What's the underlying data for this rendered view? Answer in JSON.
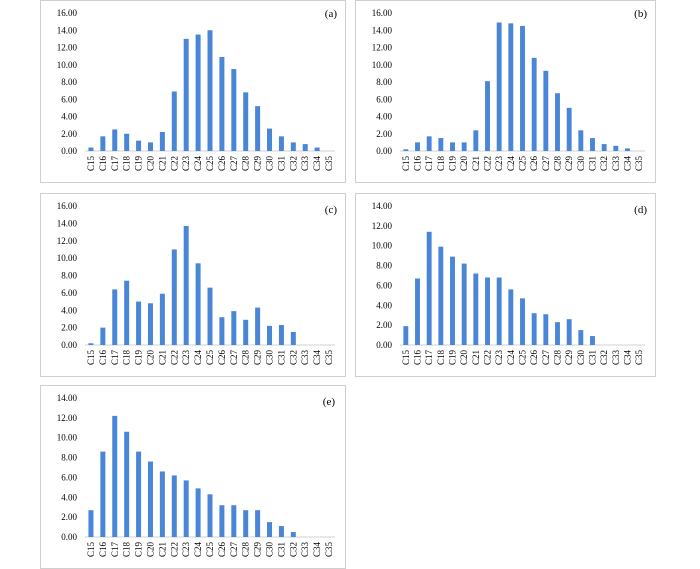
{
  "accent_color": "#4a86d8",
  "chart_data": [
    {
      "type": "bar",
      "title": "(a)",
      "categories": [
        "C15",
        "C16",
        "C17",
        "C18",
        "C19",
        "C20",
        "C21",
        "C22",
        "C23",
        "C24",
        "C25",
        "C26",
        "C27",
        "C28",
        "C29",
        "C30",
        "C31",
        "C32",
        "C33",
        "C34",
        "C35"
      ],
      "values": [
        0.4,
        1.7,
        2.5,
        2.0,
        1.2,
        1.0,
        2.2,
        6.9,
        13.0,
        13.5,
        14.0,
        10.9,
        9.5,
        6.8,
        5.2,
        2.6,
        1.7,
        1.0,
        0.8,
        0.4,
        0
      ],
      "yticks": [
        "0.00",
        "2.00",
        "4.00",
        "6.00",
        "8.00",
        "10.00",
        "12.00",
        "14.00",
        "16.00"
      ],
      "ylim": [
        0,
        16
      ],
      "grid": false,
      "legend": "none"
    },
    {
      "type": "bar",
      "title": "(b)",
      "categories": [
        "C15",
        "C16",
        "C17",
        "C18",
        "C19",
        "C20",
        "C21",
        "C22",
        "C23",
        "C24",
        "C25",
        "C26",
        "C27",
        "C28",
        "C29",
        "C30",
        "C31",
        "C32",
        "C33",
        "C34",
        "C35"
      ],
      "values": [
        0.2,
        1.0,
        1.7,
        1.5,
        1.0,
        1.0,
        2.4,
        8.1,
        14.9,
        14.8,
        14.5,
        10.8,
        9.3,
        6.7,
        5.0,
        2.4,
        1.5,
        0.8,
        0.6,
        0.3,
        0
      ],
      "yticks": [
        "0.00",
        "2.00",
        "4.00",
        "6.00",
        "8.00",
        "10.00",
        "12.00",
        "14.00",
        "16.00"
      ],
      "ylim": [
        0,
        16
      ],
      "grid": false,
      "legend": "none"
    },
    {
      "type": "bar",
      "title": "(c)",
      "categories": [
        "C15",
        "C16",
        "C17",
        "C18",
        "C19",
        "C20",
        "C21",
        "C22",
        "C23",
        "C24",
        "C25",
        "C26",
        "C27",
        "C28",
        "C29",
        "C30",
        "C31",
        "C32",
        "C33",
        "C34",
        "C35"
      ],
      "values": [
        0.2,
        2.0,
        6.4,
        7.4,
        5.0,
        4.8,
        5.9,
        11.0,
        13.7,
        9.4,
        6.6,
        3.2,
        3.9,
        2.9,
        4.3,
        2.2,
        2.3,
        1.5,
        0,
        0,
        0
      ],
      "yticks": [
        "0.00",
        "2.00",
        "4.00",
        "6.00",
        "8.00",
        "10.00",
        "12.00",
        "14.00",
        "16.00"
      ],
      "ylim": [
        0,
        16
      ],
      "grid": false,
      "legend": "none"
    },
    {
      "type": "bar",
      "title": "(d)",
      "categories": [
        "C15",
        "C16",
        "C17",
        "C18",
        "C19",
        "C20",
        "C21",
        "C22",
        "C23",
        "C24",
        "C25",
        "C26",
        "C27",
        "C28",
        "C29",
        "C30",
        "C31",
        "C32",
        "C33",
        "C34",
        "C35"
      ],
      "values": [
        1.9,
        6.7,
        11.4,
        9.9,
        8.9,
        8.2,
        7.2,
        6.8,
        6.8,
        5.6,
        4.7,
        3.2,
        3.1,
        2.3,
        2.6,
        1.5,
        0.9,
        0,
        0,
        0,
        0
      ],
      "yticks": [
        "0.00",
        "2.00",
        "4.00",
        "6.00",
        "8.00",
        "10.00",
        "12.00",
        "14.00"
      ],
      "ylim": [
        0,
        14
      ],
      "grid": false,
      "legend": "none"
    },
    {
      "type": "bar",
      "title": "(e)",
      "categories": [
        "C15",
        "C16",
        "C17",
        "C18",
        "C19",
        "C20",
        "C21",
        "C22",
        "C23",
        "C24",
        "C25",
        "C26",
        "C27",
        "C28",
        "C29",
        "C30",
        "C31",
        "C32",
        "C33",
        "C34",
        "C35"
      ],
      "values": [
        2.7,
        8.6,
        12.2,
        10.6,
        8.6,
        7.6,
        6.6,
        6.2,
        5.7,
        4.9,
        4.3,
        3.2,
        3.2,
        2.7,
        2.7,
        1.5,
        1.1,
        0.5,
        0,
        0,
        0
      ],
      "yticks": [
        "0.00",
        "2.00",
        "4.00",
        "6.00",
        "8.00",
        "10.00",
        "12.00",
        "14.00"
      ],
      "ylim": [
        0,
        14
      ],
      "grid": false,
      "legend": "none"
    }
  ]
}
